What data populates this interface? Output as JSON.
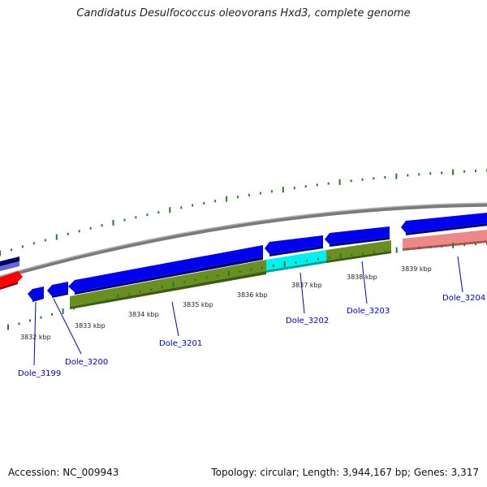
{
  "header": {
    "title": "Candidatus Desulfococcus oleovorans Hxd3, complete genome"
  },
  "footer": {
    "accession": "Accession: NC_009943",
    "topology": "Topology: circular; Length: 3,944,167 bp; Genes: 3,317"
  },
  "colors": {
    "forward_gene": "#0000ee",
    "forward_gene_dark": "#000088",
    "reverse_gene": "#0000ee",
    "cds_green": "#6b8e23",
    "cds_cyan": "#00f0f0",
    "cds_pink": "#ee8888",
    "cds_red": "#ff0000",
    "backbone": "#888888",
    "tick": "#2a7a2a",
    "label": "#0000cc"
  },
  "map": {
    "kbp_ticks": [
      {
        "label": "3832 kbp",
        "kbp": 3832
      },
      {
        "label": "3833 kbp",
        "kbp": 3833
      },
      {
        "label": "3834 kbp",
        "kbp": 3834
      },
      {
        "label": "3835 kbp",
        "kbp": 3835
      },
      {
        "label": "3836 kbp",
        "kbp": 3836
      },
      {
        "label": "3837 kbp",
        "kbp": 3837
      },
      {
        "label": "3838 kbp",
        "kbp": 3838
      },
      {
        "label": "3839 kbp",
        "kbp": 3839
      }
    ],
    "genes": [
      {
        "name": "Dole_3199",
        "label": "Dole_3199"
      },
      {
        "name": "Dole_3200",
        "label": "Dole_3200"
      },
      {
        "name": "Dole_3201",
        "label": "Dole_3201"
      },
      {
        "name": "Dole_3202",
        "label": "Dole_3202"
      },
      {
        "name": "Dole_3203",
        "label": "Dole_3203"
      },
      {
        "name": "Dole_3204",
        "label": "Dole_3204"
      }
    ]
  }
}
